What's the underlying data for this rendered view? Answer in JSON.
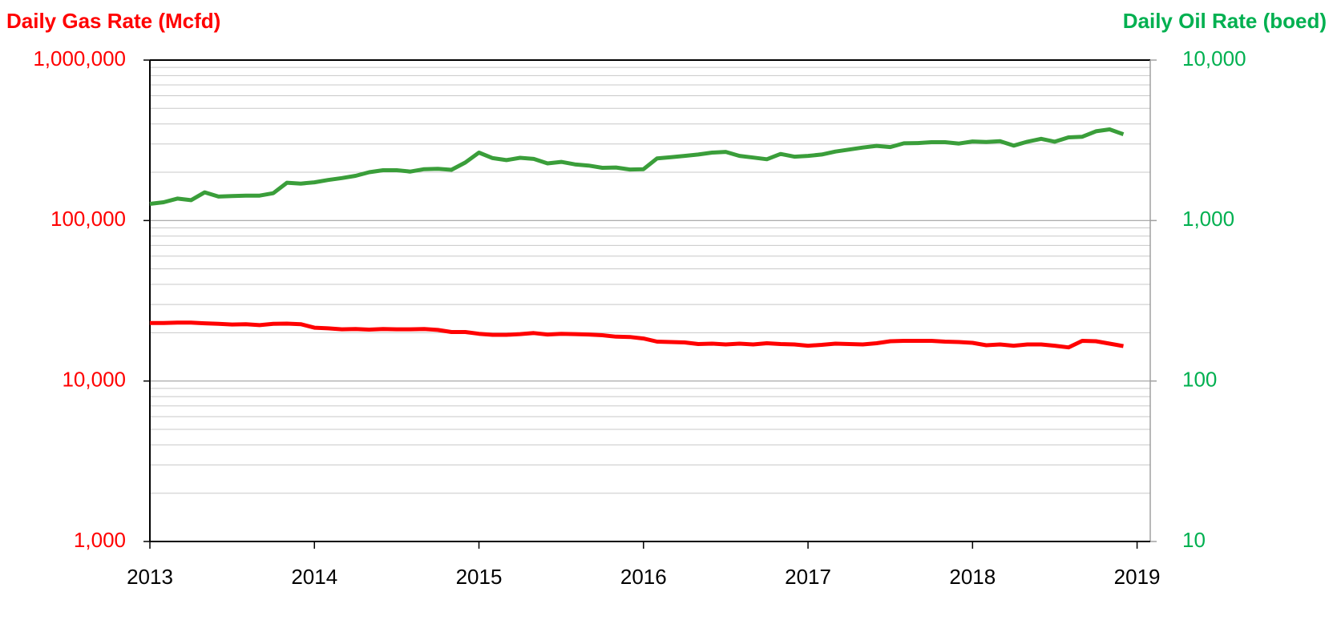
{
  "chart_data": {
    "type": "line",
    "y_label": "Daily Gas Rate (Mcfd)",
    "y2_label": "Daily Oil Rate (boed)",
    "y_label_color": "#ff0000",
    "y2_label_color": "#00b050",
    "x": [
      2013.0,
      2013.083,
      2013.167,
      2013.25,
      2013.333,
      2013.417,
      2013.5,
      2013.583,
      2013.667,
      2013.75,
      2013.833,
      2013.917,
      2014.0,
      2014.083,
      2014.167,
      2014.25,
      2014.333,
      2014.417,
      2014.5,
      2014.583,
      2014.667,
      2014.75,
      2014.833,
      2014.917,
      2015.0,
      2015.083,
      2015.167,
      2015.25,
      2015.333,
      2015.417,
      2015.5,
      2015.583,
      2015.667,
      2015.75,
      2015.833,
      2015.917,
      2016.0,
      2016.083,
      2016.167,
      2016.25,
      2016.333,
      2016.417,
      2016.5,
      2016.583,
      2016.667,
      2016.75,
      2016.833,
      2016.917,
      2017.0,
      2017.083,
      2017.167,
      2017.25,
      2017.333,
      2017.417,
      2017.5,
      2017.583,
      2017.667,
      2017.75,
      2017.833,
      2017.917,
      2018.0,
      2018.083,
      2018.167,
      2018.25,
      2018.333,
      2018.417,
      2018.5,
      2018.583,
      2018.667,
      2018.75,
      2018.833,
      2018.917
    ],
    "series": [
      {
        "name": "Daily Gas Rate (Mcfd)",
        "color": "#ff0000",
        "axis": "y",
        "values": [
          23000,
          23000,
          23100,
          23100,
          22900,
          22700,
          22500,
          22600,
          22300,
          22700,
          22800,
          22600,
          21500,
          21300,
          21000,
          21100,
          20900,
          21100,
          21000,
          21000,
          21100,
          20800,
          20200,
          20200,
          19700,
          19400,
          19400,
          19600,
          19900,
          19500,
          19700,
          19600,
          19500,
          19300,
          18900,
          18800,
          18400,
          17600,
          17500,
          17400,
          17000,
          17100,
          16900,
          17100,
          16900,
          17200,
          17000,
          16900,
          16600,
          16800,
          17100,
          17000,
          16900,
          17200,
          17700,
          17800,
          17800,
          17800,
          17600,
          17500,
          17300,
          16700,
          16900,
          16600,
          16900,
          16900,
          16600,
          16200,
          17800,
          17700,
          17100,
          16500
        ]
      },
      {
        "name": "Daily Oil Rate (boed)",
        "color": "#3a9e3a",
        "axis": "y2",
        "values": [
          1270,
          1300,
          1370,
          1340,
          1500,
          1410,
          1420,
          1430,
          1430,
          1480,
          1720,
          1700,
          1730,
          1790,
          1840,
          1900,
          2000,
          2060,
          2060,
          2020,
          2090,
          2100,
          2070,
          2300,
          2650,
          2450,
          2380,
          2460,
          2420,
          2270,
          2320,
          2240,
          2200,
          2130,
          2140,
          2080,
          2090,
          2440,
          2480,
          2530,
          2580,
          2650,
          2680,
          2530,
          2470,
          2410,
          2600,
          2500,
          2530,
          2580,
          2690,
          2770,
          2850,
          2920,
          2870,
          3030,
          3040,
          3080,
          3080,
          3020,
          3110,
          3090,
          3120,
          2930,
          3100,
          3230,
          3100,
          3300,
          3330,
          3600,
          3700,
          3450
        ]
      }
    ],
    "xlim": [
      2013,
      2019.08
    ],
    "xticks": [
      2013,
      2014,
      2015,
      2016,
      2017,
      2018,
      2019
    ],
    "ylim": [
      1000,
      1000000
    ],
    "yticks": [
      {
        "value": 1000,
        "label": "1,000"
      },
      {
        "value": 10000,
        "label": "10,000"
      },
      {
        "value": 100000,
        "label": "100,000"
      },
      {
        "value": 1000000,
        "label": "1,000,000"
      }
    ],
    "y2lim": [
      10,
      10000
    ],
    "y2ticks": [
      10,
      100,
      {
        "value": 1000,
        "label": "1,000"
      },
      {
        "value": 10000,
        "label": "10,000"
      }
    ],
    "log_scale": true,
    "grid": true,
    "minor_grid": true
  }
}
